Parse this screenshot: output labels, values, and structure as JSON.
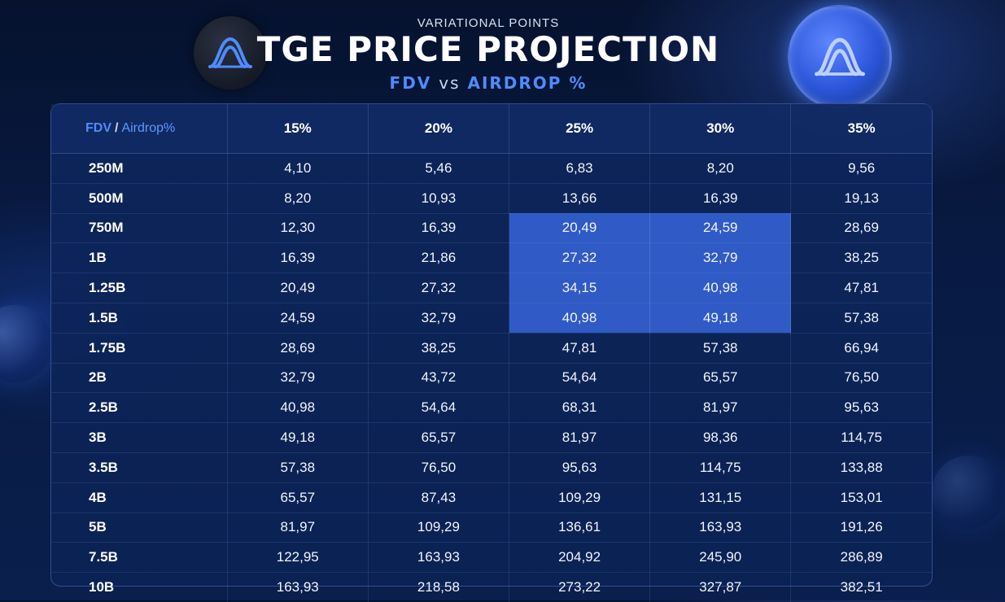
{
  "header": {
    "supertitle": "VARIATIONAL POINTS",
    "title": "TGE PRICE PROJECTION",
    "subtitle_fdv": "FDV",
    "subtitle_vs": "vs",
    "subtitle_airdrop": "AIRDROP %"
  },
  "icons": {
    "left_logo": "variational-logo-icon",
    "right_logo": "variational-coin-icon"
  },
  "colors": {
    "accent": "#4f8bff",
    "highlight": "#3c6eeb",
    "background": "#081a42"
  },
  "chart_data": {
    "type": "table",
    "corner_fdv": "FDV",
    "corner_slash": "/",
    "corner_airdrop": "Airdrop%",
    "columns": [
      "15%",
      "20%",
      "25%",
      "30%",
      "35%"
    ],
    "highlighted": {
      "rows": [
        "750M",
        "1B",
        "1.25B",
        "1.5B"
      ],
      "columns": [
        "25%",
        "30%"
      ]
    },
    "rows": [
      {
        "label": "250M",
        "values": [
          "4,10",
          "5,46",
          "6,83",
          "8,20",
          "9,56"
        ]
      },
      {
        "label": "500M",
        "values": [
          "8,20",
          "10,93",
          "13,66",
          "16,39",
          "19,13"
        ]
      },
      {
        "label": "750M",
        "values": [
          "12,30",
          "16,39",
          "20,49",
          "24,59",
          "28,69"
        ]
      },
      {
        "label": "1B",
        "values": [
          "16,39",
          "21,86",
          "27,32",
          "32,79",
          "38,25"
        ]
      },
      {
        "label": "1.25B",
        "values": [
          "20,49",
          "27,32",
          "34,15",
          "40,98",
          "47,81"
        ]
      },
      {
        "label": "1.5B",
        "values": [
          "24,59",
          "32,79",
          "40,98",
          "49,18",
          "57,38"
        ]
      },
      {
        "label": "1.75B",
        "values": [
          "28,69",
          "38,25",
          "47,81",
          "57,38",
          "66,94"
        ]
      },
      {
        "label": "2B",
        "values": [
          "32,79",
          "43,72",
          "54,64",
          "65,57",
          "76,50"
        ]
      },
      {
        "label": "2.5B",
        "values": [
          "40,98",
          "54,64",
          "68,31",
          "81,97",
          "95,63"
        ]
      },
      {
        "label": "3B",
        "values": [
          "49,18",
          "65,57",
          "81,97",
          "98,36",
          "114,75"
        ]
      },
      {
        "label": "3.5B",
        "values": [
          "57,38",
          "76,50",
          "95,63",
          "114,75",
          "133,88"
        ]
      },
      {
        "label": "4B",
        "values": [
          "65,57",
          "87,43",
          "109,29",
          "131,15",
          "153,01"
        ]
      },
      {
        "label": "5B",
        "values": [
          "81,97",
          "109,29",
          "136,61",
          "163,93",
          "191,26"
        ]
      },
      {
        "label": "7.5B",
        "values": [
          "122,95",
          "163,93",
          "204,92",
          "245,90",
          "286,89"
        ]
      },
      {
        "label": "10B",
        "values": [
          "163,93",
          "218,58",
          "273,22",
          "327,87",
          "382,51"
        ]
      }
    ]
  }
}
